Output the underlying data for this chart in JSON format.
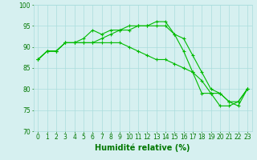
{
  "x_labels": [
    "0",
    "1",
    "2",
    "3",
    "4",
    "5",
    "6",
    "7",
    "8",
    "9",
    "10",
    "11",
    "12",
    "13",
    "14",
    "15",
    "16",
    "17",
    "18",
    "19",
    "20",
    "21",
    "22",
    "23"
  ],
  "x_values": [
    0,
    1,
    2,
    3,
    4,
    5,
    6,
    7,
    8,
    9,
    10,
    11,
    12,
    13,
    14,
    15,
    16,
    17,
    18,
    19,
    20,
    21,
    22,
    23
  ],
  "line1": [
    87,
    89,
    89,
    91,
    91,
    92,
    94,
    93,
    94,
    94,
    95,
    95,
    95,
    96,
    96,
    93,
    89,
    84,
    79,
    79,
    76,
    76,
    77,
    80
  ],
  "line2": [
    87,
    89,
    89,
    91,
    91,
    91,
    91,
    92,
    93,
    94,
    94,
    95,
    95,
    95,
    95,
    93,
    92,
    88,
    84,
    80,
    79,
    77,
    77,
    80
  ],
  "line3": [
    87,
    89,
    89,
    91,
    91,
    91,
    91,
    91,
    91,
    91,
    90,
    89,
    88,
    87,
    87,
    86,
    85,
    84,
    82,
    79,
    79,
    77,
    76,
    80
  ],
  "line_color": "#00bb00",
  "background_color": "#d6f0f0",
  "grid_color": "#aadddd",
  "xlabel": "Humidité relative (%)",
  "ylim": [
    70,
    100
  ],
  "xlim": [
    -0.5,
    23.5
  ],
  "yticks": [
    70,
    75,
    80,
    85,
    90,
    95,
    100
  ],
  "marker": "+",
  "marker_size": 3,
  "line_width": 0.8,
  "xlabel_color": "#007700",
  "xlabel_fontsize": 7,
  "tick_color": "#007700",
  "tick_fontsize": 5.5
}
